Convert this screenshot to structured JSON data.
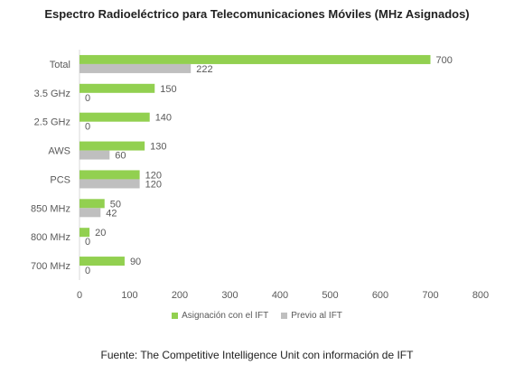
{
  "chart_data": {
    "type": "bar",
    "orientation": "horizontal",
    "title": "Espectro Radioeléctrico para Telecomunicaciones Móviles (MHz Asignados)",
    "categories": [
      "Total",
      "3.5 GHz",
      "2.5 GHz",
      "AWS",
      "PCS",
      "850 MHz",
      "800 MHz",
      "700 MHz"
    ],
    "series": [
      {
        "name": "Asignación con el IFT",
        "values": [
          700,
          150,
          140,
          130,
          120,
          50,
          20,
          90
        ],
        "color": "#92D050"
      },
      {
        "name": "Previo al IFT",
        "values": [
          222,
          0,
          0,
          60,
          120,
          42,
          0,
          0
        ],
        "color": "#BFBFBF"
      }
    ],
    "xlim": [
      0,
      800
    ],
    "xticks": [
      0,
      100,
      200,
      300,
      400,
      500,
      600,
      700,
      800
    ],
    "xlabel": "",
    "ylabel": "",
    "grid": false,
    "legend_position": "bottom",
    "data_labels": true
  },
  "source_text": "Fuente: The Competitive Intelligence Unit con información de IFT"
}
